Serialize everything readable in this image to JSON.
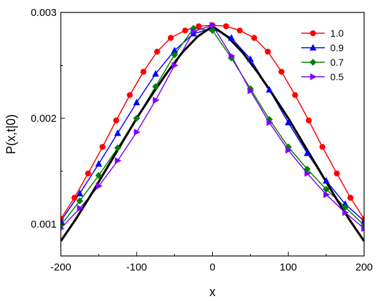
{
  "chart_data": {
    "type": "line",
    "xlabel": "x",
    "ylabel": "P(x,t|0)",
    "xlim": [
      -200,
      200
    ],
    "ylim": [
      0.0007,
      0.003
    ],
    "xticks": [
      -200,
      -100,
      0,
      100,
      200
    ],
    "xtick_labels": [
      "-200",
      "-100",
      "0",
      "100",
      "200"
    ],
    "yticks": [
      0.001,
      0.002,
      0.003
    ],
    "ytick_labels": [
      "0.001",
      "0.002",
      "0.003"
    ],
    "grid": false,
    "legend_position": "top-right",
    "reference_curve": {
      "color": "#000000",
      "x": [
        -200,
        -180,
        -160,
        -140,
        -120,
        -100,
        -80,
        -60,
        -40,
        -20,
        0,
        20,
        40,
        60,
        80,
        100,
        120,
        140,
        160,
        180,
        200
      ],
      "y": [
        0.00084,
        0.00105,
        0.00128,
        0.00152,
        0.00176,
        0.002,
        0.00222,
        0.00243,
        0.00262,
        0.00277,
        0.00287,
        0.00277,
        0.00262,
        0.00243,
        0.00222,
        0.002,
        0.00176,
        0.00152,
        0.00128,
        0.00105,
        0.00084
      ]
    },
    "series": [
      {
        "name": "1.0",
        "color": "#ff0000",
        "marker": "circle",
        "x": [
          -200,
          -182,
          -164,
          -145,
          -127,
          -109,
          -91,
          -73,
          -55,
          -36,
          -18,
          0,
          18,
          36,
          55,
          73,
          91,
          109,
          127,
          145,
          164,
          182,
          200
        ],
        "y": [
          0.00105,
          0.00125,
          0.00148,
          0.00173,
          0.00198,
          0.00222,
          0.00244,
          0.00263,
          0.00276,
          0.00283,
          0.00287,
          0.00288,
          0.00287,
          0.00283,
          0.00276,
          0.00263,
          0.00244,
          0.00222,
          0.00198,
          0.00173,
          0.00148,
          0.00125,
          0.00105
        ]
      },
      {
        "name": "0.9",
        "color": "#0000ff",
        "marker": "triangle-up",
        "x": [
          -200,
          -175,
          -150,
          -125,
          -100,
          -75,
          -50,
          -25,
          0,
          25,
          50,
          75,
          100,
          125,
          150,
          175,
          200
        ],
        "y": [
          0.00103,
          0.00129,
          0.00157,
          0.00186,
          0.00215,
          0.00242,
          0.00264,
          0.0028,
          0.00285,
          0.00276,
          0.00256,
          0.00227,
          0.00196,
          0.00167,
          0.00141,
          0.00119,
          0.00103
        ]
      },
      {
        "name": "0.7",
        "color": "#008000",
        "marker": "diamond",
        "x": [
          -200,
          -175,
          -150,
          -125,
          -100,
          -75,
          -50,
          -25,
          0,
          25,
          50,
          75,
          100,
          125,
          150,
          175,
          200
        ],
        "y": [
          0.00099,
          0.00122,
          0.00146,
          0.00172,
          0.002,
          0.0023,
          0.0026,
          0.00285,
          0.00283,
          0.00257,
          0.00228,
          0.00199,
          0.00173,
          0.00152,
          0.00133,
          0.00116,
          0.00099
        ]
      },
      {
        "name": "0.5",
        "color": "#8000ff",
        "marker": "triangle-right",
        "x": [
          -200,
          -175,
          -150,
          -125,
          -100,
          -75,
          -50,
          -25,
          0,
          25,
          50,
          75,
          100,
          125,
          150,
          175,
          200
        ],
        "y": [
          0.00096,
          0.00115,
          0.00136,
          0.0016,
          0.00187,
          0.00217,
          0.0025,
          0.00282,
          0.00288,
          0.00259,
          0.00226,
          0.00196,
          0.0017,
          0.00148,
          0.00128,
          0.00111,
          0.00096
        ]
      }
    ]
  }
}
